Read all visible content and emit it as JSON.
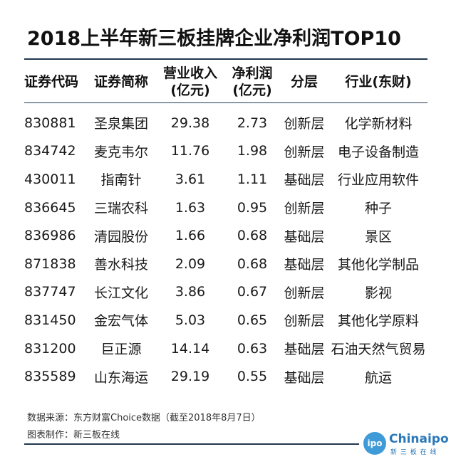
{
  "title": "2018上半年新三板挂牌企业净利润TOP10",
  "table": {
    "headers": {
      "code": "证券代码",
      "name": "证券简称",
      "revenue_l1": "营业收入",
      "revenue_l2": "(亿元)",
      "net_profit_l1": "净利润",
      "net_profit_l2": "(亿元)",
      "layer": "分层",
      "industry": "行业(东财)"
    },
    "rows": [
      {
        "code": "830881",
        "name": "圣泉集团",
        "revenue": "29.38",
        "net_profit": "2.73",
        "layer": "创新层",
        "industry": "化学新材料"
      },
      {
        "code": "834742",
        "name": "麦克韦尔",
        "revenue": "11.76",
        "net_profit": "1.98",
        "layer": "创新层",
        "industry": "电子设备制造"
      },
      {
        "code": "430011",
        "name": "指南针",
        "revenue": "3.61",
        "net_profit": "1.11",
        "layer": "基础层",
        "industry": "行业应用软件"
      },
      {
        "code": "836645",
        "name": "三瑞农科",
        "revenue": "1.63",
        "net_profit": "0.95",
        "layer": "创新层",
        "industry": "种子"
      },
      {
        "code": "836986",
        "name": "清园股份",
        "revenue": "1.66",
        "net_profit": "0.68",
        "layer": "基础层",
        "industry": "景区"
      },
      {
        "code": "871838",
        "name": "善水科技",
        "revenue": "2.09",
        "net_profit": "0.68",
        "layer": "基础层",
        "industry": "其他化学制品"
      },
      {
        "code": "837747",
        "name": "长江文化",
        "revenue": "3.86",
        "net_profit": "0.67",
        "layer": "创新层",
        "industry": "影视"
      },
      {
        "code": "831450",
        "name": "金宏气体",
        "revenue": "5.03",
        "net_profit": "0.65",
        "layer": "创新层",
        "industry": "其他化学原料"
      },
      {
        "code": "831200",
        "name": "巨正源",
        "revenue": "14.14",
        "net_profit": "0.63",
        "layer": "基础层",
        "industry": "石油天然气贸易"
      },
      {
        "code": "835589",
        "name": "山东海运",
        "revenue": "29.19",
        "net_profit": "0.55",
        "layer": "基础层",
        "industry": "航运"
      }
    ]
  },
  "footer": {
    "source": "数据来源：东方财富Choice数据（截至2018年8月7日）",
    "made_by": "图表制作：新三板在线"
  },
  "logo": {
    "mark": "ipo",
    "name": "Chinaipo",
    "tagline": "新 三 板 在 线",
    "color": "#3f9bd8"
  }
}
